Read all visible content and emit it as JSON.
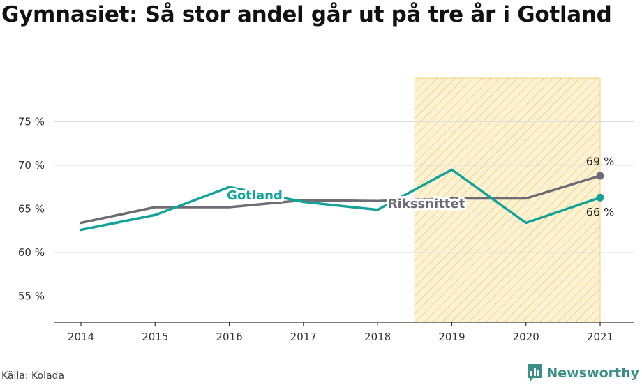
{
  "title": "Gymnasiet: Så stor andel går ut på tre år i Gotland",
  "source": "Källa: Kolada",
  "brand": "Newsworthy",
  "colors": {
    "gotland": "#13a299",
    "riks": "#6f6b75",
    "highlight_fill": "#fdf3d4",
    "highlight_hatch": "#f4d27e",
    "grid": "#dcdcdc"
  },
  "icons": {
    "brand": "bar-chart-speech-bubble-icon"
  },
  "chart_data": {
    "type": "line",
    "x": [
      "2014",
      "2015",
      "2016",
      "2017",
      "2018",
      "2019",
      "2020",
      "2021"
    ],
    "y_ticks": [
      "55 %",
      "60 %",
      "65 %",
      "70 %",
      "75 %"
    ],
    "ylim": [
      52,
      80
    ],
    "highlight_range": [
      "2019",
      "2021"
    ],
    "grid": true,
    "series": [
      {
        "name": "Gotland",
        "color": "#13a299",
        "values": [
          62.6,
          64.3,
          67.5,
          65.8,
          64.9,
          69.5,
          63.4,
          66.3
        ]
      },
      {
        "name": "Rikssnittet",
        "color": "#6f6b75",
        "values": [
          63.4,
          65.2,
          65.2,
          66.0,
          65.9,
          66.2,
          66.2,
          68.8
        ]
      }
    ],
    "end_labels": {
      "riks": "69 %",
      "gotland": "66 %"
    }
  }
}
